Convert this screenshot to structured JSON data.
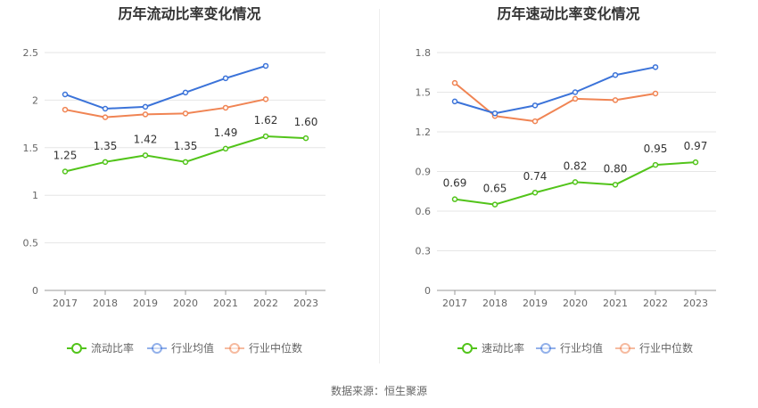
{
  "source_text": "数据来源：恒生聚源",
  "chart_data": [
    {
      "type": "line",
      "title": "历年流动比率变化情况",
      "categories": [
        "2017",
        "2018",
        "2019",
        "2020",
        "2021",
        "2022",
        "2023"
      ],
      "ylim": [
        0,
        2.5
      ],
      "yticks": [
        "0",
        "0.5",
        "1",
        "1.5",
        "2",
        "2.5"
      ],
      "ytick_values": [
        0,
        0.5,
        1,
        1.5,
        2,
        2.5
      ],
      "grid": true,
      "legend_position": "bottom",
      "series": [
        {
          "name": "流动比率",
          "color": "#52c41a",
          "values": [
            1.25,
            1.35,
            1.42,
            1.35,
            1.49,
            1.62,
            1.6
          ],
          "labels": [
            "1.25",
            "1.35",
            "1.42",
            "1.35",
            "1.49",
            "1.62",
            "1.60"
          ]
        },
        {
          "name": "行业均值",
          "color": "#3b73d9",
          "values": [
            2.06,
            1.91,
            1.93,
            2.08,
            2.23,
            2.36,
            null
          ]
        },
        {
          "name": "行业中位数",
          "color": "#f08453",
          "values": [
            1.9,
            1.82,
            1.85,
            1.86,
            1.92,
            2.01,
            null
          ]
        }
      ]
    },
    {
      "type": "line",
      "title": "历年速动比率变化情况",
      "categories": [
        "2017",
        "2018",
        "2019",
        "2020",
        "2021",
        "2022",
        "2023"
      ],
      "ylim": [
        0,
        1.8
      ],
      "yticks": [
        "0",
        "0.3",
        "0.6",
        "0.9",
        "1.2",
        "1.5",
        "1.8"
      ],
      "ytick_values": [
        0,
        0.3,
        0.6,
        0.9,
        1.2,
        1.5,
        1.8
      ],
      "grid": true,
      "legend_position": "bottom",
      "series": [
        {
          "name": "速动比率",
          "color": "#52c41a",
          "values": [
            0.69,
            0.65,
            0.74,
            0.82,
            0.8,
            0.95,
            0.97
          ],
          "labels": [
            "0.69",
            "0.65",
            "0.74",
            "0.82",
            "0.80",
            "0.95",
            "0.97"
          ]
        },
        {
          "name": "行业均值",
          "color": "#3b73d9",
          "values": [
            1.43,
            1.34,
            1.4,
            1.5,
            1.63,
            1.69,
            null
          ]
        },
        {
          "name": "行业中位数",
          "color": "#f08453",
          "values": [
            1.57,
            1.32,
            1.28,
            1.45,
            1.44,
            1.49,
            null
          ]
        }
      ]
    }
  ]
}
